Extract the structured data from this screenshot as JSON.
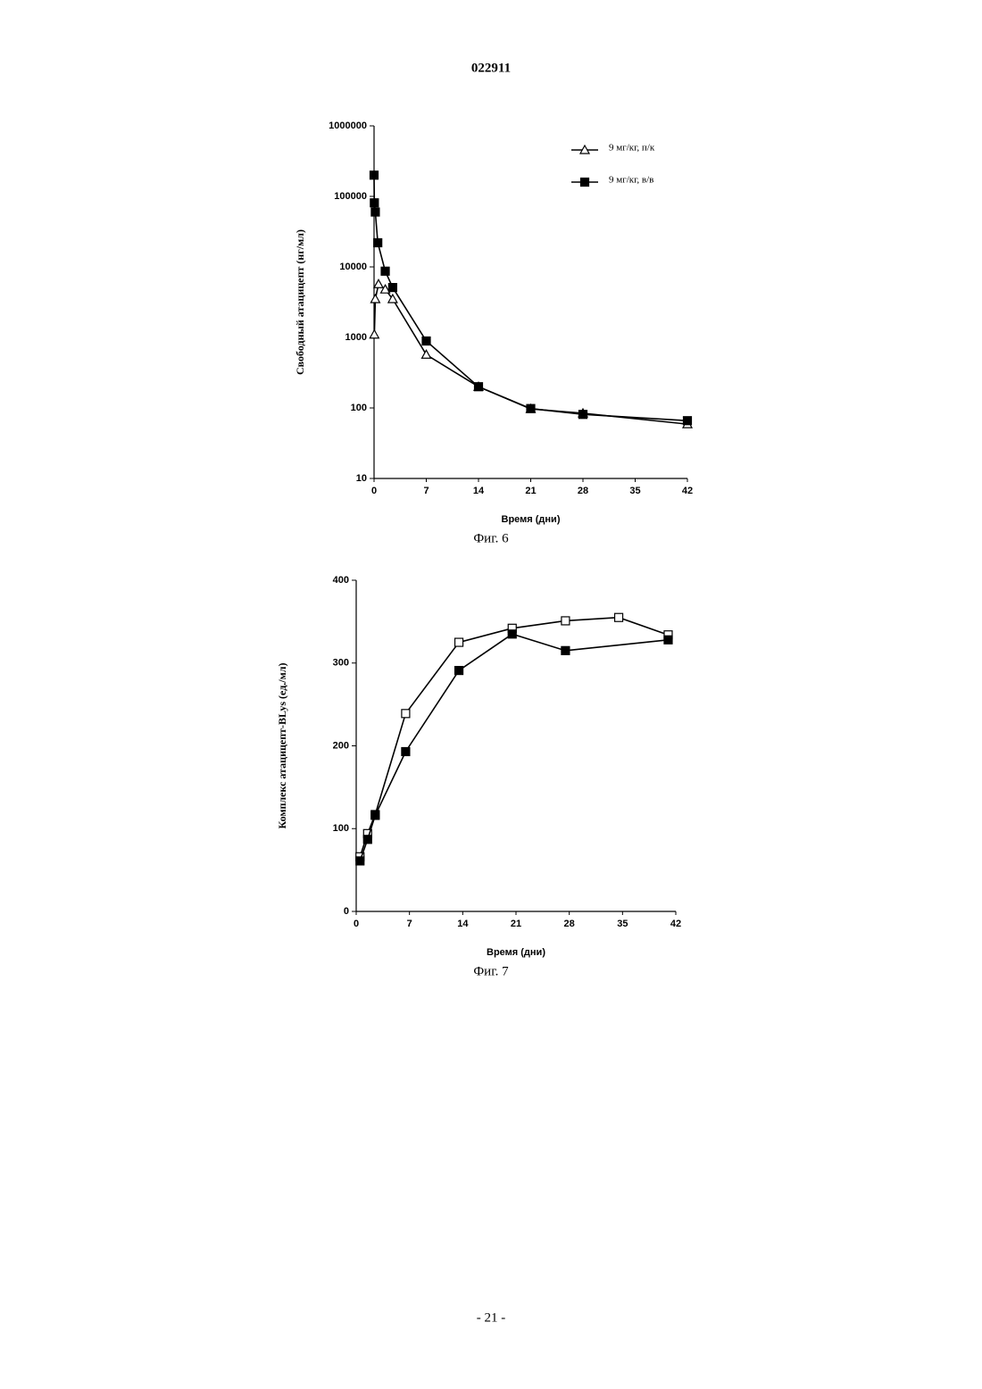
{
  "header": "022911",
  "footer": "- 21 -",
  "chart_data": [
    {
      "type": "line",
      "caption": "Фиг. 6",
      "x_label": "Время (дни)",
      "y_label": "Свободный атацицепт (нг/мл)",
      "log_y": true,
      "ylim": [
        10,
        1000000
      ],
      "yticks": [
        10,
        100,
        1000,
        10000,
        100000,
        1000000
      ],
      "xlim": [
        0,
        42
      ],
      "xticks": [
        0,
        7,
        14,
        21,
        28,
        35,
        42
      ],
      "legend": "upper right",
      "series": [
        {
          "name": "9 мг/кг, п/к",
          "color": "#000000",
          "marker": "triangle-open",
          "x": [
            0.04,
            0.17,
            0.6,
            1.5,
            2.5,
            7,
            14,
            21,
            28,
            42
          ],
          "values": [
            1100,
            3500,
            5700,
            4800,
            3500,
            570,
            200,
            97,
            84,
            59
          ]
        },
        {
          "name": "9 мг/кг, в/в",
          "color": "#000000",
          "marker": "square-filled",
          "x": [
            0,
            0.04,
            0.17,
            0.5,
            1.5,
            2.5,
            7,
            14,
            21,
            28,
            42
          ],
          "values": [
            200000,
            81000,
            60000,
            22000,
            8700,
            5100,
            890,
            200,
            98,
            81,
            66
          ]
        }
      ]
    },
    {
      "type": "line",
      "caption": "Фиг. 7",
      "x_label": "Время (дни)",
      "y_label": "Комплекс атацицепт-BLys (ед./мл)",
      "log_y": false,
      "ylim": [
        0,
        400
      ],
      "yticks": [
        0,
        100,
        200,
        300,
        400
      ],
      "xlim": [
        0,
        42
      ],
      "xticks": [
        0,
        7,
        14,
        21,
        28,
        35,
        42
      ],
      "series": [
        {
          "color": "#000000",
          "marker": "square-open",
          "x": [
            0.5,
            1.5,
            2.5,
            6.5,
            13.5,
            20.5,
            27.5,
            34.5,
            41
          ],
          "values": [
            66,
            94,
            117,
            239,
            325,
            342,
            351,
            355,
            334
          ]
        },
        {
          "color": "#000000",
          "marker": "square-filled",
          "x": [
            0.5,
            1.5,
            2.5,
            6.5,
            13.5,
            20.5,
            27.5,
            41
          ],
          "values": [
            61,
            87,
            116,
            193,
            291,
            335,
            315,
            328
          ]
        }
      ]
    }
  ]
}
